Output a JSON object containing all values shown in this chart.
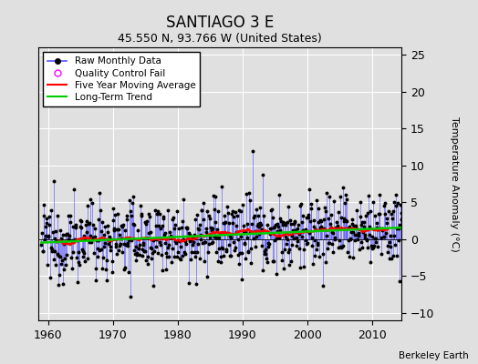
{
  "title": "SANTIAGO 3 E",
  "subtitle": "45.550 N, 93.766 W (United States)",
  "attribution": "Berkeley Earth",
  "ylabel": "Temperature Anomaly (°C)",
  "xlim": [
    1958.5,
    2014.5
  ],
  "ylim": [
    -11,
    26
  ],
  "yticks": [
    -10,
    -5,
    0,
    5,
    10,
    15,
    20,
    25
  ],
  "xticks": [
    1960,
    1970,
    1980,
    1990,
    2000,
    2010
  ],
  "start_year": 1959,
  "end_year": 2014,
  "stem_color": "#5555ff",
  "dot_color": "#000000",
  "ma_color": "#ff0000",
  "trend_color": "#00cc00",
  "qc_color": "#ff00ff",
  "background_color": "#e0e0e0",
  "grid_color": "#ffffff",
  "title_fontsize": 12,
  "subtitle_fontsize": 9,
  "seed": 12345
}
